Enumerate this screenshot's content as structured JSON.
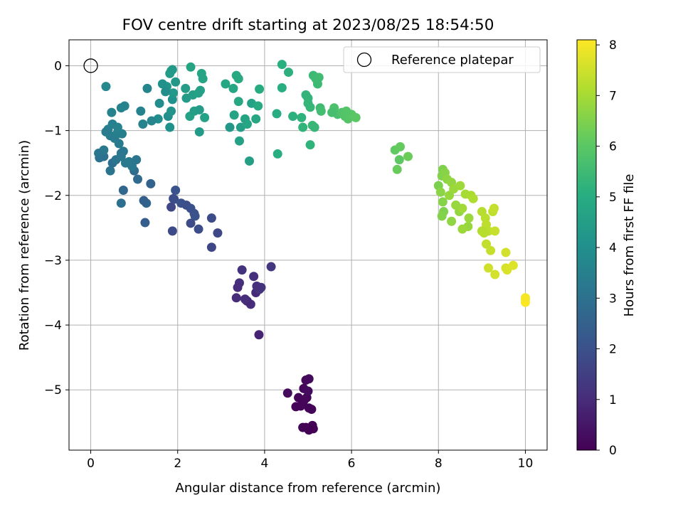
{
  "chart_data": {
    "type": "scatter",
    "title": "FOV centre drift starting at 2023/08/25 18:54:50",
    "xlabel": "Angular distance from reference (arcmin)",
    "ylabel": "Rotation from reference (arcmin)",
    "xlim": [
      -0.5,
      10.5
    ],
    "ylim": [
      -5.93,
      0.4
    ],
    "xticks": [
      0,
      2,
      4,
      6,
      8,
      10
    ],
    "yticks": [
      0,
      -1,
      -2,
      -3,
      -4,
      -5
    ],
    "xtick_labels": [
      "0",
      "2",
      "4",
      "6",
      "8",
      "10"
    ],
    "ytick_labels": [
      "0",
      "−1",
      "−2",
      "−3",
      "−4",
      "−5"
    ],
    "grid": true,
    "legend": {
      "placement": "top-right",
      "label": "Reference platepar",
      "marker": "open-circle"
    },
    "reference_point": {
      "x": 0,
      "y": 0
    },
    "colorbar": {
      "label": "Hours from first FF file",
      "colormap": "viridis",
      "range": [
        0,
        8.1
      ],
      "ticks": [
        0,
        1,
        2,
        3,
        4,
        5,
        6,
        7,
        8
      ],
      "tick_labels": [
        "0",
        "1",
        "2",
        "3",
        "4",
        "5",
        "6",
        "7",
        "8"
      ]
    },
    "points": [
      [
        4.88,
        -5.2,
        0.05
      ],
      [
        4.97,
        -5.12,
        0.07
      ],
      [
        5.02,
        -5.28,
        0.08
      ],
      [
        5.08,
        -5.3,
        0.1
      ],
      [
        4.95,
        -5.58,
        0.03
      ],
      [
        5.02,
        -5.62,
        0.02
      ],
      [
        5.1,
        -5.55,
        0.04
      ],
      [
        5.12,
        -5.6,
        0.02
      ],
      [
        4.88,
        -5.58,
        0.06
      ],
      [
        4.83,
        -5.25,
        0.12
      ],
      [
        4.9,
        -4.98,
        0.15
      ],
      [
        5.02,
        -4.83,
        0.2
      ],
      [
        4.95,
        -4.85,
        0.18
      ],
      [
        4.78,
        -5.12,
        0.1
      ],
      [
        4.72,
        -5.26,
        0.08
      ],
      [
        4.53,
        -5.05,
        0.22
      ],
      [
        5.0,
        -5.02,
        0.25
      ],
      [
        4.92,
        -5.15,
        0.13
      ],
      [
        3.48,
        -3.15,
        1.15
      ],
      [
        3.58,
        -3.62,
        1.0
      ],
      [
        3.68,
        -3.68,
        1.05
      ],
      [
        3.75,
        -3.25,
        1.1
      ],
      [
        3.8,
        -3.5,
        0.95
      ],
      [
        3.88,
        -3.45,
        1.2
      ],
      [
        3.92,
        -3.42,
        1.18
      ],
      [
        4.15,
        -3.1,
        1.25
      ],
      [
        3.42,
        -3.35,
        1.08
      ],
      [
        3.38,
        -3.42,
        1.02
      ],
      [
        3.35,
        -3.58,
        0.98
      ],
      [
        3.6,
        -3.63,
        0.9
      ],
      [
        3.87,
        -4.15,
        0.8
      ],
      [
        3.82,
        -3.4,
        1.12
      ],
      [
        3.55,
        -3.6,
        1.04
      ],
      [
        1.88,
        -2.55,
        1.8
      ],
      [
        1.85,
        -2.18,
        1.75
      ],
      [
        1.9,
        -2.05,
        1.85
      ],
      [
        1.92,
        -2.06,
        1.9
      ],
      [
        2.2,
        -2.15,
        1.95
      ],
      [
        2.3,
        -2.2,
        2.0
      ],
      [
        2.38,
        -2.28,
        1.98
      ],
      [
        2.4,
        -2.32,
        2.05
      ],
      [
        2.3,
        -2.43,
        1.85
      ],
      [
        2.48,
        -2.52,
        1.88
      ],
      [
        2.78,
        -2.35,
        1.82
      ],
      [
        2.78,
        -2.8,
        1.7
      ],
      [
        2.92,
        -2.58,
        1.75
      ],
      [
        1.95,
        -1.92,
        2.1
      ],
      [
        2.08,
        -2.12,
        2.0
      ],
      [
        1.38,
        -1.82,
        2.55
      ],
      [
        1.28,
        -2.12,
        2.6
      ],
      [
        1.25,
        -2.42,
        2.4
      ],
      [
        1.22,
        -2.08,
        2.5
      ],
      [
        1.08,
        -1.75,
        2.8
      ],
      [
        1.0,
        -1.62,
        2.85
      ],
      [
        0.75,
        -1.92,
        2.7
      ],
      [
        0.7,
        -2.12,
        2.95
      ],
      [
        0.3,
        -1.4,
        3.0
      ],
      [
        0.25,
        -1.35,
        3.05
      ],
      [
        0.45,
        -1.62,
        3.1
      ],
      [
        0.5,
        -1.5,
        2.95
      ],
      [
        0.58,
        -1.45,
        3.15
      ],
      [
        0.7,
        -1.35,
        3.2
      ],
      [
        0.75,
        -1.32,
        3.18
      ],
      [
        0.8,
        -1.5,
        3.25
      ],
      [
        0.88,
        -1.48,
        3.3
      ],
      [
        0.95,
        -1.55,
        3.22
      ],
      [
        1.05,
        -1.45,
        3.15
      ],
      [
        0.65,
        -1.2,
        3.3
      ],
      [
        0.45,
        -1.08,
        3.4
      ],
      [
        0.4,
        -0.98,
        3.45
      ],
      [
        0.35,
        -1.02,
        3.35
      ],
      [
        0.55,
        -1.12,
        3.38
      ],
      [
        0.6,
        -1.05,
        3.42
      ],
      [
        0.72,
        -1.05,
        3.4
      ],
      [
        0.3,
        -1.3,
        3.28
      ],
      [
        0.5,
        -0.9,
        3.5
      ],
      [
        0.62,
        -0.95,
        3.55
      ],
      [
        0.48,
        -0.72,
        3.6
      ],
      [
        0.35,
        -0.32,
        3.75
      ],
      [
        0.7,
        -0.65,
        3.6
      ],
      [
        0.78,
        -0.62,
        3.58
      ],
      [
        0.2,
        -1.42,
        3.05
      ],
      [
        0.18,
        -1.35,
        3.12
      ],
      [
        0.7,
        -1.4,
        3.2
      ],
      [
        1.3,
        -0.35,
        3.65
      ],
      [
        1.58,
        -0.58,
        3.9
      ],
      [
        1.55,
        -0.82,
        3.95
      ],
      [
        1.4,
        -0.85,
        3.7
      ],
      [
        1.2,
        -0.9,
        3.6
      ],
      [
        1.15,
        -0.7,
        3.55
      ],
      [
        1.78,
        -0.78,
        4.0
      ],
      [
        1.82,
        -0.95,
        4.05
      ],
      [
        1.88,
        -0.52,
        4.1
      ],
      [
        1.75,
        -0.32,
        4.2
      ],
      [
        1.85,
        -0.7,
        4.15
      ],
      [
        1.9,
        -0.42,
        4.25
      ],
      [
        1.95,
        -0.25,
        4.3
      ],
      [
        1.72,
        -0.4,
        3.95
      ],
      [
        1.82,
        -0.12,
        4.4
      ],
      [
        1.85,
        -0.08,
        4.5
      ],
      [
        1.88,
        -0.06,
        4.35
      ],
      [
        1.65,
        -0.28,
        4.1
      ],
      [
        2.18,
        -0.35,
        4.45
      ],
      [
        2.2,
        -0.5,
        4.4
      ],
      [
        2.35,
        -0.45,
        4.5
      ],
      [
        2.28,
        -0.78,
        4.6
      ],
      [
        2.38,
        -0.7,
        4.55
      ],
      [
        2.48,
        -0.42,
        4.62
      ],
      [
        2.52,
        -0.38,
        4.58
      ],
      [
        2.5,
        -1.02,
        4.4
      ],
      [
        2.3,
        -0.02,
        4.7
      ],
      [
        2.55,
        -0.12,
        4.75
      ],
      [
        2.62,
        -0.8,
        4.65
      ],
      [
        2.58,
        -0.2,
        4.72
      ],
      [
        2.5,
        -0.68,
        4.45
      ],
      [
        3.2,
        -0.95,
        4.3
      ],
      [
        3.28,
        -0.35,
        4.8
      ],
      [
        3.4,
        -0.55,
        4.85
      ],
      [
        3.35,
        -0.15,
        4.9
      ],
      [
        3.4,
        -0.2,
        4.88
      ],
      [
        3.45,
        -0.95,
        4.5
      ],
      [
        3.42,
        -1.16,
        4.6
      ],
      [
        3.55,
        -0.82,
        4.7
      ],
      [
        3.6,
        -0.9,
        4.75
      ],
      [
        3.7,
        -0.58,
        4.65
      ],
      [
        3.65,
        -1.47,
        4.55
      ],
      [
        3.8,
        -0.82,
        4.8
      ],
      [
        3.88,
        -0.36,
        4.95
      ],
      [
        3.85,
        -0.62,
        4.9
      ],
      [
        3.1,
        -0.28,
        4.82
      ],
      [
        3.3,
        -0.76,
        4.68
      ],
      [
        4.28,
        -0.74,
        5.0
      ],
      [
        4.4,
        -0.34,
        5.05
      ],
      [
        4.4,
        0.02,
        5.1
      ],
      [
        4.55,
        -0.1,
        5.15
      ],
      [
        4.65,
        -0.78,
        5.12
      ],
      [
        4.3,
        -1.36,
        5.05
      ],
      [
        4.85,
        -0.8,
        5.2
      ],
      [
        4.88,
        -0.95,
        5.25
      ],
      [
        4.95,
        -0.45,
        5.3
      ],
      [
        5.0,
        -0.5,
        5.28
      ],
      [
        5.05,
        -0.64,
        5.35
      ],
      [
        5.1,
        -0.92,
        5.4
      ],
      [
        5.15,
        -0.95,
        5.38
      ],
      [
        5.05,
        -1.22,
        5.2
      ],
      [
        5.12,
        -0.15,
        5.45
      ],
      [
        5.18,
        -0.2,
        5.5
      ],
      [
        5.25,
        -0.18,
        5.55
      ],
      [
        5.22,
        -0.28,
        5.48
      ],
      [
        5.28,
        -0.65,
        5.52
      ],
      [
        5.3,
        -0.7,
        5.58
      ],
      [
        5.0,
        -0.58,
        5.32
      ],
      [
        5.68,
        -0.75,
        5.7
      ],
      [
        5.78,
        -0.72,
        5.8
      ],
      [
        5.85,
        -0.78,
        5.85
      ],
      [
        5.92,
        -0.82,
        5.9
      ],
      [
        5.6,
        -0.65,
        5.75
      ],
      [
        5.55,
        -0.72,
        5.65
      ],
      [
        6.0,
        -0.75,
        5.95
      ],
      [
        6.1,
        -0.8,
        6.0
      ],
      [
        5.88,
        -0.7,
        5.88
      ],
      [
        7.0,
        -1.3,
        6.1
      ],
      [
        7.12,
        -1.25,
        6.15
      ],
      [
        7.1,
        -1.45,
        6.05
      ],
      [
        7.05,
        -1.6,
        6.2
      ],
      [
        7.3,
        -1.4,
        6.25
      ],
      [
        8.1,
        -1.6,
        6.5
      ],
      [
        8.08,
        -1.7,
        6.55
      ],
      [
        8.15,
        -1.65,
        6.6
      ],
      [
        8.0,
        -1.85,
        6.45
      ],
      [
        8.05,
        -1.95,
        6.65
      ],
      [
        8.2,
        -1.75,
        6.7
      ],
      [
        8.3,
        -1.8,
        6.75
      ],
      [
        8.1,
        -2.1,
        6.6
      ],
      [
        8.12,
        -2.25,
        6.5
      ],
      [
        8.08,
        -2.32,
        6.55
      ],
      [
        8.25,
        -2.0,
        6.8
      ],
      [
        8.35,
        -1.9,
        6.85
      ],
      [
        8.4,
        -2.15,
        6.7
      ],
      [
        8.48,
        -2.25,
        6.75
      ],
      [
        8.5,
        -1.85,
        6.9
      ],
      [
        8.55,
        -2.2,
        6.95
      ],
      [
        8.62,
        -1.98,
        7.0
      ],
      [
        8.7,
        -2.35,
        6.85
      ],
      [
        8.75,
        -2.0,
        7.05
      ],
      [
        8.8,
        -2.05,
        7.1
      ],
      [
        8.68,
        -2.48,
        6.8
      ],
      [
        8.55,
        -2.52,
        6.88
      ],
      [
        8.3,
        -2.4,
        6.72
      ],
      [
        8.4,
        -2.15,
        6.82
      ],
      [
        9.0,
        -2.25,
        7.2
      ],
      [
        9.08,
        -2.35,
        7.25
      ],
      [
        9.1,
        -2.45,
        7.3
      ],
      [
        9.15,
        -2.55,
        7.28
      ],
      [
        9.0,
        -2.55,
        7.15
      ],
      [
        9.05,
        -2.58,
        7.22
      ],
      [
        9.1,
        -2.75,
        7.35
      ],
      [
        9.2,
        -2.85,
        7.4
      ],
      [
        9.25,
        -2.25,
        7.32
      ],
      [
        9.28,
        -2.2,
        7.38
      ],
      [
        9.3,
        -2.55,
        7.42
      ],
      [
        9.15,
        -3.12,
        7.5
      ],
      [
        9.3,
        -3.22,
        7.55
      ],
      [
        9.55,
        -2.88,
        7.55
      ],
      [
        9.55,
        -3.12,
        7.6
      ],
      [
        9.58,
        -3.15,
        7.65
      ],
      [
        9.72,
        -3.08,
        7.7
      ],
      [
        10.0,
        -3.6,
        8.05
      ],
      [
        10.0,
        -3.65,
        8.1
      ],
      [
        10.0,
        -3.58,
        8.02
      ]
    ]
  }
}
